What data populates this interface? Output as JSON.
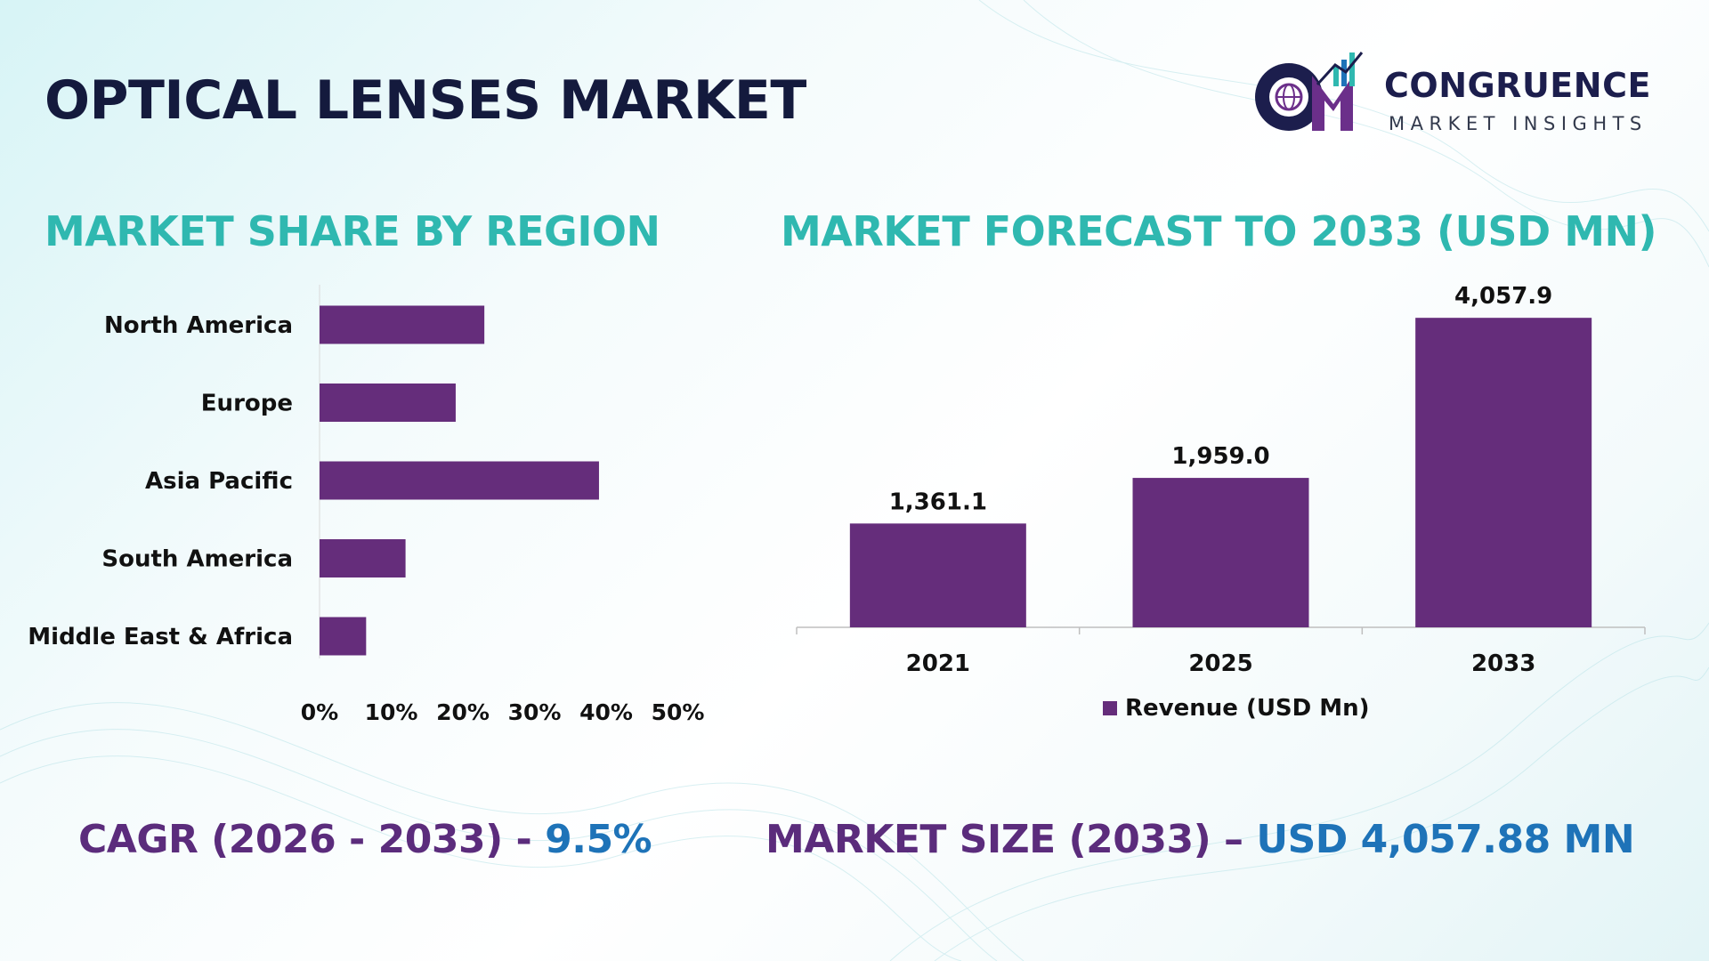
{
  "header": {
    "title": "OPTICAL LENSES MARKET",
    "brand_name": "CONGRUENCE",
    "brand_tagline": "MARKET INSIGHTS",
    "logo_letters": "CM"
  },
  "colors": {
    "bar": "#652d7b",
    "section_title": "#2fb8b0",
    "title": "#141a3d",
    "stat_label": "#5b2c7c",
    "stat_value": "#1e73b8"
  },
  "chart_data": [
    {
      "type": "bar",
      "orientation": "horizontal",
      "title": "MARKET SHARE BY REGION",
      "categories": [
        "North America",
        "Europe",
        "Asia Pacific",
        "South America",
        "Middle East & Africa"
      ],
      "values": [
        23,
        19,
        39,
        12,
        6.5
      ],
      "xlim": [
        0,
        50
      ],
      "xticks": [
        "0%",
        "10%",
        "20%",
        "30%",
        "40%",
        "50%"
      ],
      "grid": false
    },
    {
      "type": "bar",
      "orientation": "vertical",
      "title": "MARKET FORECAST TO 2033 (USD MN)",
      "categories": [
        "2021",
        "2025",
        "2033"
      ],
      "series": [
        {
          "name": "Revenue (USD Mn)",
          "values": [
            1361.1,
            1959.0,
            4057.9
          ],
          "labels": [
            "1,361.1",
            "1,959.0",
            "4,057.9"
          ]
        }
      ],
      "ylim": [
        0,
        4200
      ],
      "legend": "bottom",
      "grid": false
    }
  ],
  "stats": {
    "cagr_label": "CAGR (2026 - 2033) - ",
    "cagr_value": "9.5%",
    "size_label": "MARKET SIZE (2033) – ",
    "size_value": "USD 4,057.88 MN"
  }
}
